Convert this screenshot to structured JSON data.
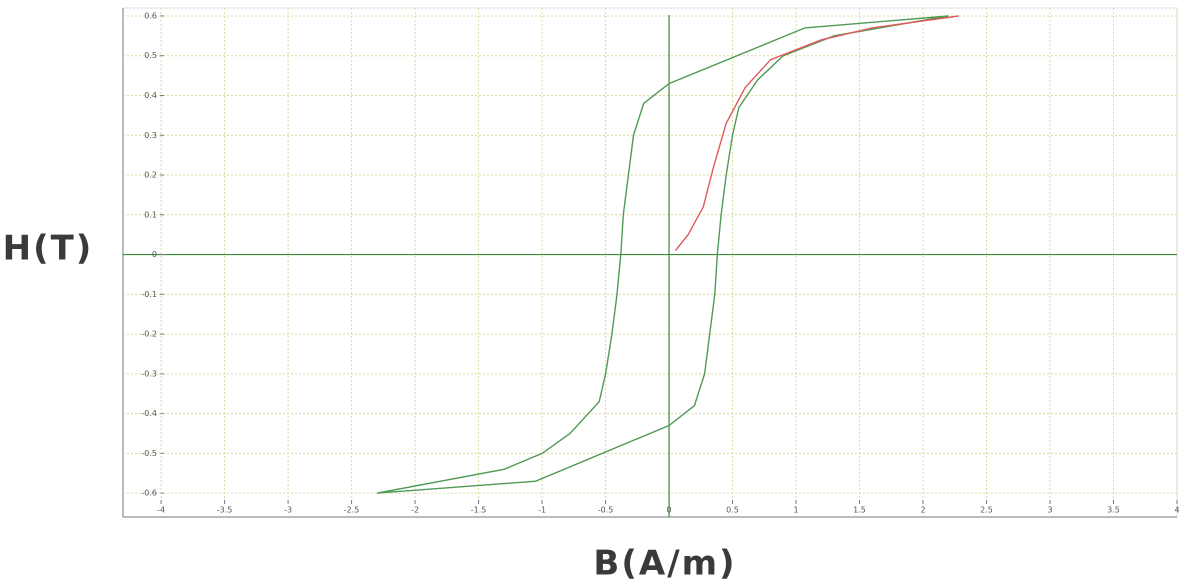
{
  "chart_data": {
    "type": "line",
    "y_label": "H(T)",
    "x_label": "B(A/m)",
    "xlim": [
      -4.3,
      4.0
    ],
    "ylim": [
      -0.66,
      0.62
    ],
    "xticks": [
      -4,
      -3.5,
      -3,
      -2.5,
      -2,
      -1.5,
      -1,
      -0.5,
      0,
      0.5,
      1,
      1.5,
      2,
      2.5,
      3,
      3.5,
      4
    ],
    "yticks": [
      0.6,
      0.5,
      0.4,
      0.3,
      0.2,
      0.1,
      0,
      -0.1,
      -0.2,
      -0.3,
      -0.4,
      -0.5,
      -0.6
    ],
    "grid": true,
    "series": [
      {
        "color": "#4f9a55",
        "x": [
          2.2,
          1.07,
          0,
          -0.2,
          -0.28,
          -0.32,
          -0.36,
          -0.38,
          -0.41,
          -0.45,
          -0.5,
          -0.55,
          -0.78,
          -1.0,
          -1.3,
          -2.3,
          -1.05,
          0,
          0.2,
          0.28,
          0.32,
          0.36,
          0.38,
          0.41,
          0.45,
          0.5,
          0.55,
          0.7,
          0.9,
          1.3,
          2.2
        ],
        "values": [
          0.6,
          0.57,
          0.43,
          0.38,
          0.3,
          0.2,
          0.1,
          0,
          -0.1,
          -0.2,
          -0.3,
          -0.37,
          -0.45,
          -0.5,
          -0.54,
          -0.6,
          -0.57,
          -0.43,
          -0.38,
          -0.3,
          -0.2,
          -0.1,
          0,
          0.1,
          0.2,
          0.3,
          0.37,
          0.44,
          0.5,
          0.55,
          0.6
        ]
      },
      {
        "color": "#e0585a",
        "x": [
          0.05,
          0.15,
          0.27,
          0.35,
          0.45,
          0.6,
          0.8,
          1.2,
          1.6,
          2.28
        ],
        "values": [
          0.01,
          0.05,
          0.12,
          0.22,
          0.33,
          0.42,
          0.49,
          0.54,
          0.57,
          0.6
        ]
      }
    ]
  }
}
